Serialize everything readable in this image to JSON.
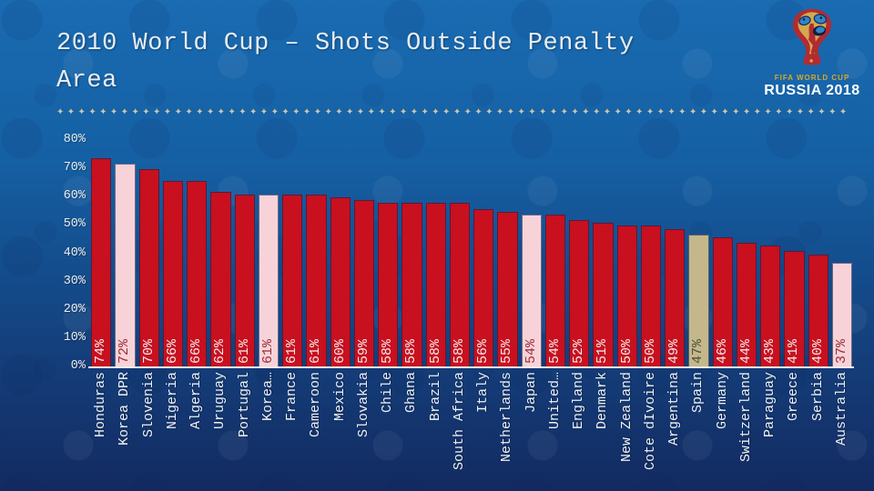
{
  "title": "2010 World Cup – Shots Outside Penalty Area",
  "divider_glyph": "✦",
  "logo": {
    "caption_top": "FIFA WORLD CUP",
    "caption_bottom": "RUSSIA 2018"
  },
  "colors": {
    "bar_red": "#c8101f",
    "bar_pink": "#f7d3d9",
    "bar_khaki": "#c4b88a",
    "value_on_red": "#f3eaea",
    "value_on_pink": "#9b2e38",
    "value_on_khaki": "#50503e",
    "background_top": "#1a6bb2",
    "background_bottom": "#132a61",
    "axis_text": "#e9edf0",
    "title_text": "#e7edf3",
    "divider": "#cfc7a8"
  },
  "chart_data": {
    "type": "bar",
    "title": "2010 World Cup – Shots Outside Penalty Area",
    "xlabel": "",
    "ylabel": "",
    "ylim": [
      0,
      80
    ],
    "ytick_step": 10,
    "yticks": [
      "0%",
      "10%",
      "20%",
      "30%",
      "40%",
      "50%",
      "60%",
      "70%",
      "80%"
    ],
    "grid": false,
    "legend": false,
    "categories": [
      "Honduras",
      "Korea DPR",
      "Slovenia",
      "Nigeria",
      "Algeria",
      "Uruguay",
      "Portugal",
      "Korea…",
      "France",
      "Cameroon",
      "Mexico",
      "Slovakia",
      "Chile",
      "Ghana",
      "Brazil",
      "South Africa",
      "Italy",
      "Netherlands",
      "Japan",
      "United…",
      "England",
      "Denmark",
      "New Zealand",
      "Cote dIvoire",
      "Argentina",
      "Spain",
      "Germany",
      "Switzerland",
      "Paraguay",
      "Greece",
      "Serbia",
      "Australia"
    ],
    "values": [
      74,
      72,
      70,
      66,
      66,
      62,
      61,
      61,
      61,
      61,
      60,
      59,
      58,
      58,
      58,
      58,
      56,
      55,
      54,
      54,
      52,
      51,
      50,
      50,
      49,
      47,
      46,
      44,
      43,
      41,
      40,
      37
    ],
    "value_labels": [
      "74%",
      "72%",
      "70%",
      "66%",
      "66%",
      "62%",
      "61%",
      "61%",
      "61%",
      "61%",
      "60%",
      "59%",
      "58%",
      "58%",
      "58%",
      "58%",
      "56%",
      "55%",
      "54%",
      "54%",
      "52%",
      "51%",
      "50%",
      "50%",
      "49%",
      "47%",
      "46%",
      "44%",
      "43%",
      "41%",
      "40%",
      "37%"
    ],
    "bar_color_keys": [
      "red",
      "pink",
      "red",
      "red",
      "red",
      "red",
      "red",
      "pink",
      "red",
      "red",
      "red",
      "red",
      "red",
      "red",
      "red",
      "red",
      "red",
      "red",
      "pink",
      "red",
      "red",
      "red",
      "red",
      "red",
      "red",
      "khaki",
      "red",
      "red",
      "red",
      "red",
      "red",
      "pink"
    ]
  }
}
